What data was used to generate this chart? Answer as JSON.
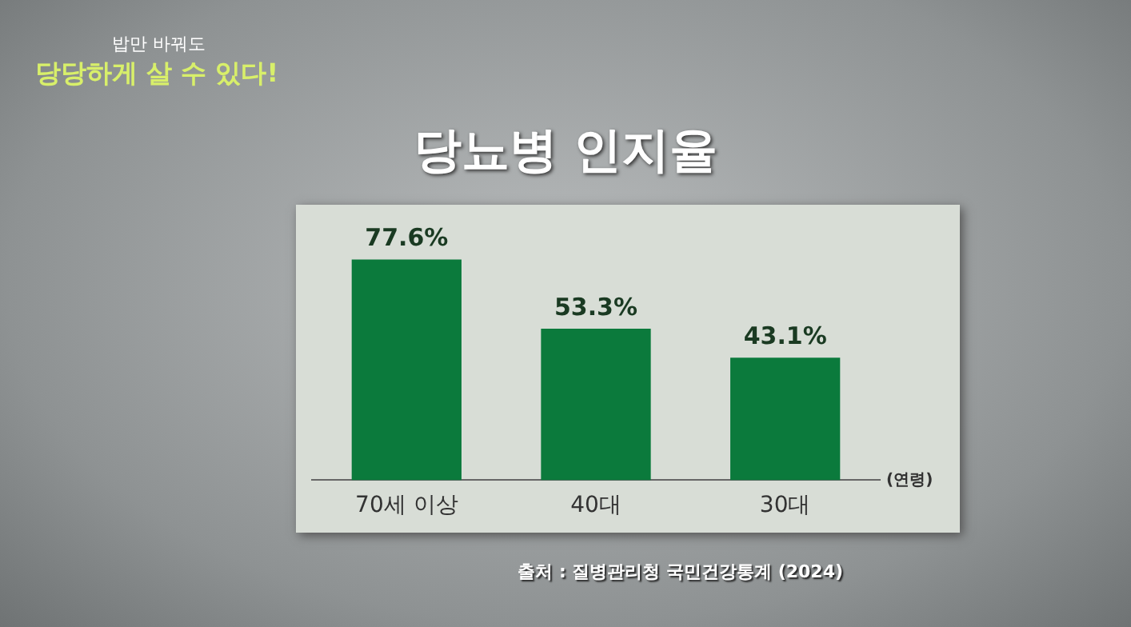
{
  "chart_data": {
    "type": "bar",
    "title": "당뇨병 인지율",
    "xlabel": "(연령)",
    "categories": [
      "70세 이상",
      "40대",
      "30대"
    ],
    "values": [
      77.6,
      53.3,
      43.1
    ],
    "color": "#0b7a3c",
    "value_labels": [
      "77.6%",
      "53.3%",
      "43.1%"
    ],
    "tick_labels": "x",
    "grid": false,
    "legend": false,
    "annotations": [
      "밥만 바꿔도",
      "당당하게 살 수 있다!",
      "출처 : 질병관리청 국민건강통계 (2024)"
    ]
  }
}
